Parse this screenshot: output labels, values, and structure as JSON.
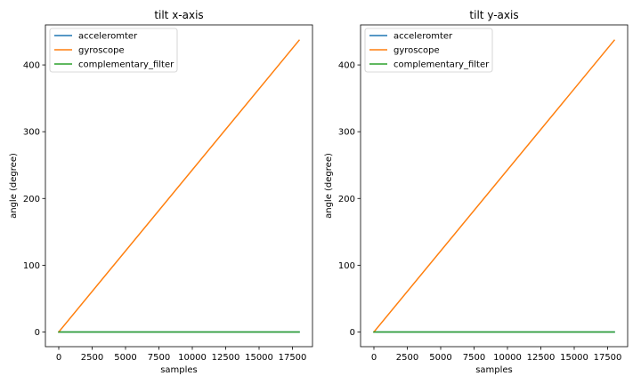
{
  "chart_data": [
    {
      "type": "line",
      "title": "tilt x-axis",
      "xlabel": "samples",
      "ylabel": "angle (degree)",
      "xlim": [
        -1000,
        19000
      ],
      "ylim": [
        -22,
        460
      ],
      "xticks": [
        0,
        2500,
        5000,
        7500,
        10000,
        12500,
        15000,
        17500
      ],
      "yticks": [
        0,
        100,
        200,
        300,
        400
      ],
      "grid": false,
      "legend": "top-left",
      "series": [
        {
          "name": "acceleromter",
          "color": "#1f77b4",
          "x": [
            0,
            18000
          ],
          "y": [
            0,
            0
          ]
        },
        {
          "name": "gyroscope",
          "color": "#ff7f0e",
          "x": [
            0,
            18000
          ],
          "y": [
            0,
            437
          ]
        },
        {
          "name": "complementary_filter",
          "color": "#2ca02c",
          "x": [
            0,
            18000
          ],
          "y": [
            0,
            0
          ]
        }
      ]
    },
    {
      "type": "line",
      "title": "tilt y-axis",
      "xlabel": "samples",
      "ylabel": "angle (degree)",
      "xlim": [
        -1000,
        19000
      ],
      "ylim": [
        -22,
        460
      ],
      "xticks": [
        0,
        2500,
        5000,
        7500,
        10000,
        12500,
        15000,
        17500
      ],
      "yticks": [
        0,
        100,
        200,
        300,
        400
      ],
      "grid": false,
      "legend": "top-left",
      "series": [
        {
          "name": "acceleromter",
          "color": "#1f77b4",
          "x": [
            0,
            18000
          ],
          "y": [
            0,
            0
          ]
        },
        {
          "name": "gyroscope",
          "color": "#ff7f0e",
          "x": [
            0,
            18000
          ],
          "y": [
            0,
            437
          ]
        },
        {
          "name": "complementary_filter",
          "color": "#2ca02c",
          "x": [
            0,
            18000
          ],
          "y": [
            0,
            0
          ]
        }
      ]
    }
  ]
}
